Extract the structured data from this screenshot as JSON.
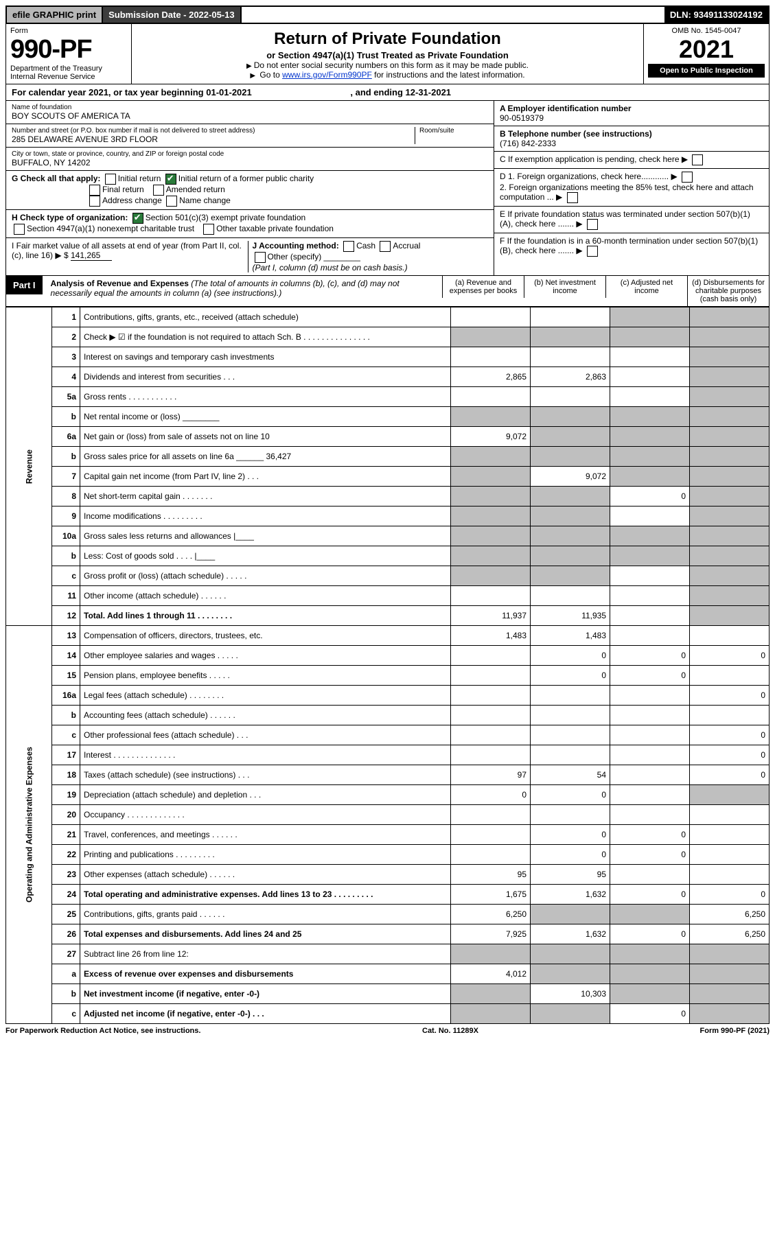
{
  "topbar": {
    "efile": "efile GRAPHIC print",
    "subdate_label": "Submission Date - 2022-05-13",
    "dln": "DLN: 93491133024192"
  },
  "header": {
    "form_label": "Form",
    "form_number": "990-PF",
    "dept": "Department of the Treasury",
    "irs": "Internal Revenue Service",
    "title": "Return of Private Foundation",
    "subtitle": "or Section 4947(a)(1) Trust Treated as Private Foundation",
    "instr1": "Do not enter social security numbers on this form as it may be made public.",
    "instr2_pre": "Go to ",
    "instr2_link": "www.irs.gov/Form990PF",
    "instr2_post": " for instructions and the latest information.",
    "omb": "OMB No. 1545-0047",
    "year": "2021",
    "open": "Open to Public Inspection"
  },
  "calendar": {
    "text_pre": "For calendar year 2021, or tax year beginning ",
    "begin": "01-01-2021",
    "mid": " , and ending ",
    "end": "12-31-2021"
  },
  "info_left": {
    "name_label": "Name of foundation",
    "name": "BOY SCOUTS OF AMERICA TA",
    "addr_label": "Number and street (or P.O. box number if mail is not delivered to street address)",
    "addr": "285 DELAWARE AVENUE 3RD FLOOR",
    "room_label": "Room/suite",
    "city_label": "City or town, state or province, country, and ZIP or foreign postal code",
    "city": "BUFFALO, NY  14202",
    "g_label": "G Check all that apply:",
    "g_opts": [
      "Initial return",
      "Final return",
      "Address change",
      "Initial return of a former public charity",
      "Amended return",
      "Name change"
    ],
    "h_label": "H Check type of organization:",
    "h_opt1": "Section 501(c)(3) exempt private foundation",
    "h_opt2": "Section 4947(a)(1) nonexempt charitable trust",
    "h_opt3": "Other taxable private foundation",
    "i_label": "I Fair market value of all assets at end of year (from Part II, col. (c), line 16)",
    "i_prefix": "▶ $",
    "i_value": "141,265",
    "j_label": "J Accounting method:",
    "j_opts": [
      "Cash",
      "Accrual",
      "Other (specify)"
    ],
    "j_note": "(Part I, column (d) must be on cash basis.)"
  },
  "info_right": {
    "a_label": "A Employer identification number",
    "a_val": "90-0519379",
    "b_label": "B Telephone number (see instructions)",
    "b_val": "(716) 842-2333",
    "c_label": "C If exemption application is pending, check here",
    "d1_label": "D 1. Foreign organizations, check here............",
    "d2_label": "2. Foreign organizations meeting the 85% test, check here and attach computation ...",
    "e_label": "E If private foundation status was terminated under section 507(b)(1)(A), check here .......",
    "f_label": "F If the foundation is in a 60-month termination under section 507(b)(1)(B), check here ......."
  },
  "part1": {
    "tag": "Part I",
    "title": "Analysis of Revenue and Expenses",
    "title_note": " (The total of amounts in columns (b), (c), and (d) may not necessarily equal the amounts in column (a) (see instructions).)",
    "col_a": "(a) Revenue and expenses per books",
    "col_b": "(b) Net investment income",
    "col_c": "(c) Adjusted net income",
    "col_d": "(d) Disbursements for charitable purposes (cash basis only)"
  },
  "sections": {
    "revenue": "Revenue",
    "expenses": "Operating and Administrative Expenses"
  },
  "rows": [
    {
      "num": "1",
      "desc": "Contributions, gifts, grants, etc., received (attach schedule)",
      "a": "",
      "b": "",
      "c": "shade",
      "d": "shade"
    },
    {
      "num": "2",
      "desc": "Check ▶ ☑ if the foundation is not required to attach Sch. B     .   .   .   .   .   .   .   .   .   .   .   .   .   .   .",
      "a": "shade",
      "b": "shade",
      "c": "shade",
      "d": "shade"
    },
    {
      "num": "3",
      "desc": "Interest on savings and temporary cash investments",
      "a": "",
      "b": "",
      "c": "",
      "d": "shade"
    },
    {
      "num": "4",
      "desc": "Dividends and interest from securities   .   .   .",
      "a": "2,865",
      "b": "2,863",
      "c": "",
      "d": "shade"
    },
    {
      "num": "5a",
      "desc": "Gross rents   .   .   .   .   .   .   .   .   .   .   .",
      "a": "",
      "b": "",
      "c": "",
      "d": "shade"
    },
    {
      "num": "b",
      "desc": "Net rental income or (loss) ________",
      "a": "shade",
      "b": "shade",
      "c": "shade",
      "d": "shade"
    },
    {
      "num": "6a",
      "desc": "Net gain or (loss) from sale of assets not on line 10",
      "a": "9,072",
      "b": "shade",
      "c": "shade",
      "d": "shade"
    },
    {
      "num": "b",
      "desc": "Gross sales price for all assets on line 6a ______ 36,427",
      "a": "shade",
      "b": "shade",
      "c": "shade",
      "d": "shade"
    },
    {
      "num": "7",
      "desc": "Capital gain net income (from Part IV, line 2)   .   .   .",
      "a": "shade",
      "b": "9,072",
      "c": "shade",
      "d": "shade"
    },
    {
      "num": "8",
      "desc": "Net short-term capital gain   .   .   .   .   .   .   .",
      "a": "shade",
      "b": "shade",
      "c": "0",
      "d": "shade"
    },
    {
      "num": "9",
      "desc": "Income modifications   .   .   .   .   .   .   .   .   .",
      "a": "shade",
      "b": "shade",
      "c": "",
      "d": "shade"
    },
    {
      "num": "10a",
      "desc": "Gross sales less returns and allowances  |____",
      "a": "shade",
      "b": "shade",
      "c": "shade",
      "d": "shade"
    },
    {
      "num": "b",
      "desc": "Less: Cost of goods sold   .   .   .   .   |____",
      "a": "shade",
      "b": "shade",
      "c": "shade",
      "d": "shade"
    },
    {
      "num": "c",
      "desc": "Gross profit or (loss) (attach schedule)   .   .   .   .   .",
      "a": "shade",
      "b": "shade",
      "c": "",
      "d": "shade"
    },
    {
      "num": "11",
      "desc": "Other income (attach schedule)   .   .   .   .   .   .",
      "a": "",
      "b": "",
      "c": "",
      "d": "shade"
    },
    {
      "num": "12",
      "desc": "Total. Add lines 1 through 11   .   .   .   .   .   .   .   .",
      "a": "11,937",
      "b": "11,935",
      "c": "",
      "d": "shade",
      "bold": true
    }
  ],
  "rows2": [
    {
      "num": "13",
      "desc": "Compensation of officers, directors, trustees, etc.",
      "a": "1,483",
      "b": "1,483",
      "c": "",
      "d": ""
    },
    {
      "num": "14",
      "desc": "Other employee salaries and wages   .   .   .   .   .",
      "a": "",
      "b": "0",
      "c": "0",
      "d": "0"
    },
    {
      "num": "15",
      "desc": "Pension plans, employee benefits   .   .   .   .   .",
      "a": "",
      "b": "0",
      "c": "0",
      "d": ""
    },
    {
      "num": "16a",
      "desc": "Legal fees (attach schedule)   .   .   .   .   .   .   .   .",
      "a": "",
      "b": "",
      "c": "",
      "d": "0"
    },
    {
      "num": "b",
      "desc": "Accounting fees (attach schedule)   .   .   .   .   .   .",
      "a": "",
      "b": "",
      "c": "",
      "d": ""
    },
    {
      "num": "c",
      "desc": "Other professional fees (attach schedule)   .   .   .",
      "a": "",
      "b": "",
      "c": "",
      "d": "0"
    },
    {
      "num": "17",
      "desc": "Interest   .   .   .   .   .   .   .   .   .   .   .   .   .   .",
      "a": "",
      "b": "",
      "c": "",
      "d": "0"
    },
    {
      "num": "18",
      "desc": "Taxes (attach schedule) (see instructions)   .   .   .",
      "a": "97",
      "b": "54",
      "c": "",
      "d": "0"
    },
    {
      "num": "19",
      "desc": "Depreciation (attach schedule) and depletion   .   .   .",
      "a": "0",
      "b": "0",
      "c": "",
      "d": "shade"
    },
    {
      "num": "20",
      "desc": "Occupancy   .   .   .   .   .   .   .   .   .   .   .   .   .",
      "a": "",
      "b": "",
      "c": "",
      "d": ""
    },
    {
      "num": "21",
      "desc": "Travel, conferences, and meetings   .   .   .   .   .   .",
      "a": "",
      "b": "0",
      "c": "0",
      "d": ""
    },
    {
      "num": "22",
      "desc": "Printing and publications   .   .   .   .   .   .   .   .   .",
      "a": "",
      "b": "0",
      "c": "0",
      "d": ""
    },
    {
      "num": "23",
      "desc": "Other expenses (attach schedule)   .   .   .   .   .   .",
      "a": "95",
      "b": "95",
      "c": "",
      "d": ""
    },
    {
      "num": "24",
      "desc": "Total operating and administrative expenses. Add lines 13 to 23   .   .   .   .   .   .   .   .   .",
      "a": "1,675",
      "b": "1,632",
      "c": "0",
      "d": "0",
      "bold": true
    },
    {
      "num": "25",
      "desc": "Contributions, gifts, grants paid   .   .   .   .   .   .",
      "a": "6,250",
      "b": "shade",
      "c": "shade",
      "d": "6,250"
    },
    {
      "num": "26",
      "desc": "Total expenses and disbursements. Add lines 24 and 25",
      "a": "7,925",
      "b": "1,632",
      "c": "0",
      "d": "6,250",
      "bold": true
    },
    {
      "num": "27",
      "desc": "Subtract line 26 from line 12:",
      "a": "shade",
      "b": "shade",
      "c": "shade",
      "d": "shade"
    },
    {
      "num": "a",
      "desc": "Excess of revenue over expenses and disbursements",
      "a": "4,012",
      "b": "shade",
      "c": "shade",
      "d": "shade",
      "bold": true
    },
    {
      "num": "b",
      "desc": "Net investment income (if negative, enter -0-)",
      "a": "shade",
      "b": "10,303",
      "c": "shade",
      "d": "shade",
      "bold": true
    },
    {
      "num": "c",
      "desc": "Adjusted net income (if negative, enter -0-)   .   .   .",
      "a": "shade",
      "b": "shade",
      "c": "0",
      "d": "shade",
      "bold": true
    }
  ],
  "footer": {
    "left": "For Paperwork Reduction Act Notice, see instructions.",
    "mid": "Cat. No. 11289X",
    "right": "Form 990-PF (2021)"
  }
}
